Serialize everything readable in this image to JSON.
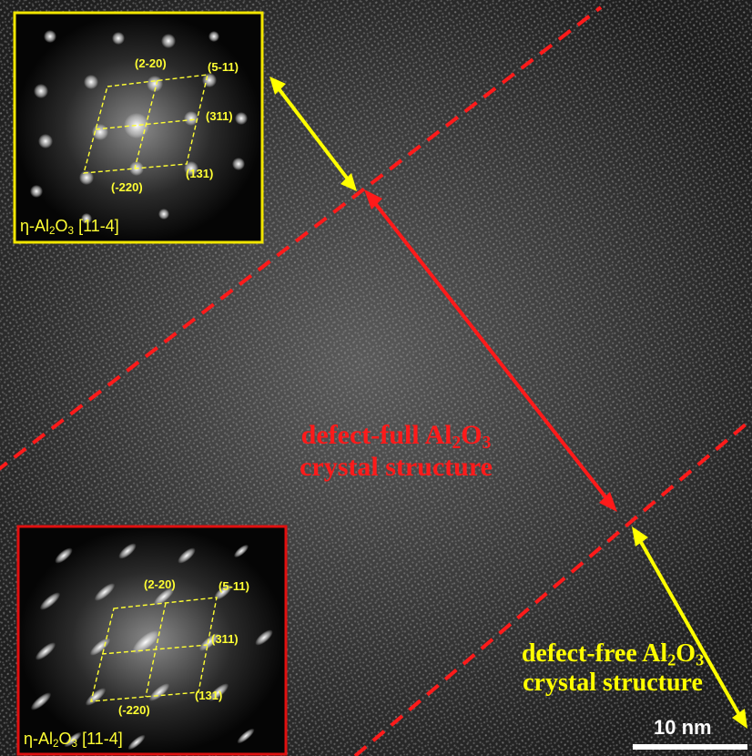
{
  "image": {
    "colors": {
      "background": "#2a2a2a",
      "defect_full": "#ff1a1a",
      "defect_free": "#ffff00",
      "inset_top_border": "#f2e600",
      "inset_bottom_border": "#e01010"
    }
  },
  "labels": {
    "defect_full_line1_a": "defect-full Al",
    "defect_full_sub2": "2",
    "defect_full_line1_b": "O",
    "defect_full_sub3": "3",
    "defect_full_line2": "crystal structure",
    "defect_free_line1_a": "defect-free Al",
    "defect_free_sub2": "2",
    "defect_free_line1_b": "O",
    "defect_free_sub3": "3",
    "defect_free_line2": "crystal structure",
    "scale_bar": "10 nm"
  },
  "inset_top": {
    "caption_a": "η-Al",
    "caption_sub2": "2",
    "caption_b": "O",
    "caption_sub3": "3",
    "caption_c": " [11-4]",
    "spots": [
      "(2-20)",
      "(5-11)",
      "(311)",
      "(131)",
      "(-220)"
    ]
  },
  "inset_bottom": {
    "caption_a": "η-Al",
    "caption_sub2": "2",
    "caption_b": "O",
    "caption_sub3": "3",
    "caption_c": " [11-4]",
    "spots": [
      "(2-20)",
      "(5-11)",
      "(311)",
      "(131)",
      "(-220)"
    ]
  }
}
